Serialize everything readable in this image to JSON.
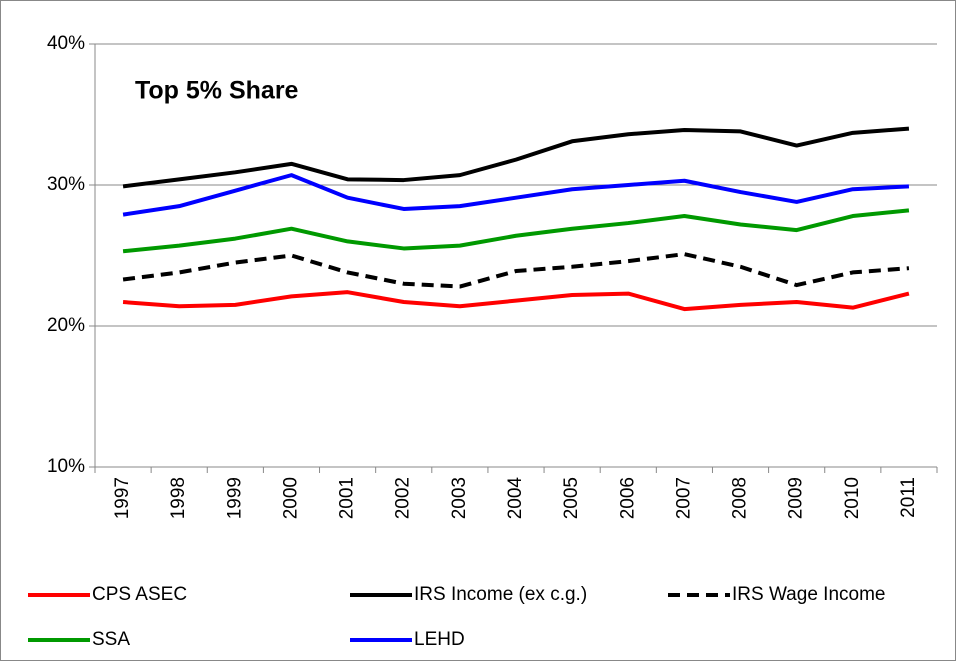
{
  "chart_data": {
    "type": "line",
    "annotation": "Top 5% Share",
    "categories": [
      "1997",
      "1998",
      "1999",
      "2000",
      "2001",
      "2002",
      "2003",
      "2004",
      "2005",
      "2006",
      "2007",
      "2008",
      "2009",
      "2010",
      "2011"
    ],
    "ylim": [
      10,
      40
    ],
    "yticks": [
      {
        "value": 10,
        "label": "10%"
      },
      {
        "value": 20,
        "label": "20%"
      },
      {
        "value": 30,
        "label": "30%"
      },
      {
        "value": 40,
        "label": "40%"
      }
    ],
    "grid": true,
    "legend": "bottom",
    "series": [
      {
        "name": "CPS ASEC",
        "color": "#ff0000",
        "line_style": "solid",
        "values": [
          21.7,
          21.4,
          21.5,
          22.1,
          22.4,
          21.7,
          21.4,
          21.8,
          22.2,
          22.3,
          21.2,
          21.5,
          21.7,
          21.3,
          22.3
        ]
      },
      {
        "name": "IRS Income (ex c.g.)",
        "color": "#000000",
        "line_style": "solid",
        "values": [
          29.9,
          30.4,
          30.9,
          31.5,
          30.4,
          30.35,
          30.7,
          31.8,
          33.1,
          33.6,
          33.9,
          33.8,
          32.8,
          33.7,
          34.0
        ]
      },
      {
        "name": "IRS Wage Income",
        "color": "#000000",
        "line_style": "dashed",
        "values": [
          23.3,
          23.8,
          24.5,
          25.0,
          23.8,
          23.0,
          22.8,
          23.9,
          24.2,
          24.6,
          25.1,
          24.2,
          22.9,
          23.8,
          24.1
        ]
      },
      {
        "name": "SSA",
        "color": "#009900",
        "line_style": "solid",
        "values": [
          25.3,
          25.7,
          26.2,
          26.9,
          26.0,
          25.5,
          25.7,
          26.4,
          26.9,
          27.3,
          27.8,
          27.2,
          26.8,
          27.8,
          28.2
        ]
      },
      {
        "name": "LEHD",
        "color": "#0000ff",
        "line_style": "solid",
        "values": [
          27.9,
          28.5,
          29.6,
          30.7,
          29.1,
          28.3,
          28.5,
          29.1,
          29.7,
          30.0,
          30.3,
          29.5,
          28.8,
          29.7,
          29.9
        ]
      }
    ]
  }
}
